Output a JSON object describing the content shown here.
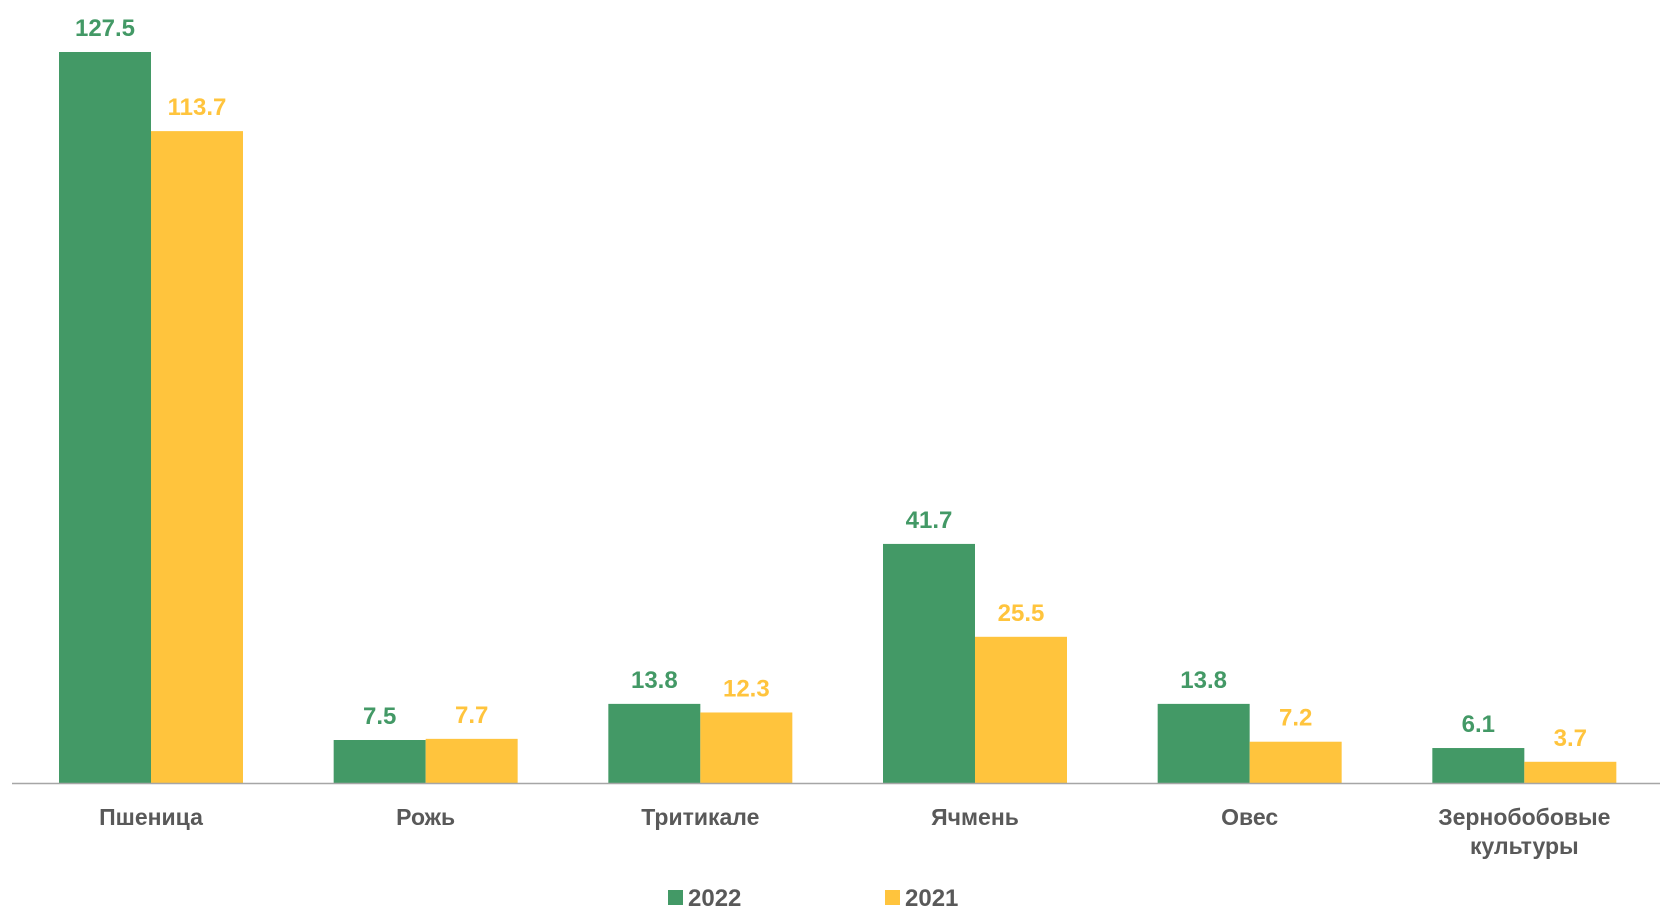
{
  "chart_data": {
    "type": "bar",
    "title": "",
    "xlabel": "",
    "ylabel": "",
    "categories": [
      [
        "Пшеница"
      ],
      [
        "Рожь"
      ],
      [
        "Тритикале"
      ],
      [
        "Ячмень"
      ],
      [
        "Овес"
      ],
      [
        "Зернобобовые",
        "культуры"
      ]
    ],
    "series": [
      {
        "name": "2022",
        "color": "#439966",
        "values": [
          127.5,
          7.5,
          13.8,
          41.7,
          13.8,
          6.1
        ],
        "labels": [
          "127.5",
          "7.5",
          "13.8",
          "41.7",
          "13.8",
          "6.1"
        ]
      },
      {
        "name": "2021",
        "color": "#FFC43D",
        "values": [
          113.7,
          7.7,
          12.3,
          25.5,
          7.2,
          3.7
        ],
        "labels": [
          "113.7",
          "7.7",
          "12.3",
          "25.5",
          "7.2",
          "3.7"
        ]
      }
    ],
    "ylim": [
      0,
      127.5
    ],
    "grid": false,
    "legend_position": "bottom",
    "category_label_color": "#595959",
    "axis_color": "#A6A6A6"
  }
}
